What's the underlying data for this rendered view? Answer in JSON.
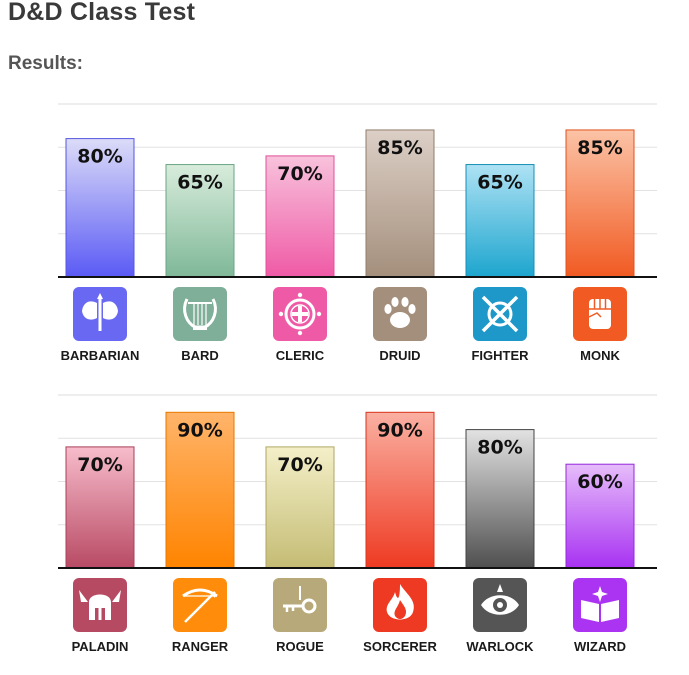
{
  "page": {
    "title": "D&D Class Test",
    "subtitle": "Results:"
  },
  "chart_data": [
    {
      "type": "bar",
      "categories": [
        "BARBARIAN",
        "BARD",
        "CLERIC",
        "DRUID",
        "FIGHTER",
        "MONK"
      ],
      "values": [
        80,
        65,
        70,
        85,
        65,
        85
      ],
      "value_labels": [
        "80%",
        "65%",
        "70%",
        "85%",
        "65%",
        "85%"
      ],
      "ylim": [
        0,
        100
      ],
      "grid": true,
      "icons": [
        "battle-axe-icon",
        "lyre-icon",
        "holy-cross-icon",
        "paw-print-icon",
        "crossed-swords-icon",
        "fist-icon"
      ],
      "colors": [
        {
          "top": "#dcdcf8",
          "bottom": "#5a5af5",
          "border": "#5656e0",
          "icon": "#6868f2"
        },
        {
          "top": "#d8ecdc",
          "bottom": "#7fb898",
          "border": "#6aa684",
          "icon": "#7fae99"
        },
        {
          "top": "#f8c2dc",
          "bottom": "#ef5aa6",
          "border": "#e05298",
          "icon": "#ef5aa6"
        },
        {
          "top": "#dccfc6",
          "bottom": "#a48f7c",
          "border": "#907d6c",
          "icon": "#a48f7c"
        },
        {
          "top": "#aee2f4",
          "bottom": "#1da5ce",
          "border": "#168fb6",
          "icon": "#1d98c8"
        },
        {
          "top": "#fbc3a6",
          "bottom": "#f15a22",
          "border": "#e0531e",
          "icon": "#f15a22"
        }
      ]
    },
    {
      "type": "bar",
      "categories": [
        "PALADIN",
        "RANGER",
        "ROGUE",
        "SORCERER",
        "WARLOCK",
        "WIZARD"
      ],
      "values": [
        70,
        90,
        70,
        90,
        80,
        60
      ],
      "value_labels": [
        "70%",
        "90%",
        "70%",
        "90%",
        "80%",
        "60%"
      ],
      "ylim": [
        0,
        100
      ],
      "grid": true,
      "icons": [
        "winged-helmet-icon",
        "bow-arrow-icon",
        "key-dagger-icon",
        "flame-icon",
        "eye-icon",
        "spellbook-icon"
      ],
      "colors": [
        {
          "top": "#f7bccb",
          "bottom": "#b84a64",
          "border": "#a84058",
          "icon": "#b64a62"
        },
        {
          "top": "#ffb46a",
          "bottom": "#ff8400",
          "border": "#e87700",
          "icon": "#ff8c0a"
        },
        {
          "top": "#f4efc8",
          "bottom": "#c4bc74",
          "border": "#aea664",
          "icon": "#b7a979"
        },
        {
          "top": "#fab0a2",
          "bottom": "#ee3a22",
          "border": "#d8341e",
          "icon": "#ee3a22"
        },
        {
          "top": "#e2e2e2",
          "bottom": "#4f4f4f",
          "border": "#444444",
          "icon": "#555555"
        },
        {
          "top": "#e6bcfa",
          "bottom": "#a832f2",
          "border": "#9628dc",
          "icon": "#ab34f2"
        }
      ]
    }
  ]
}
